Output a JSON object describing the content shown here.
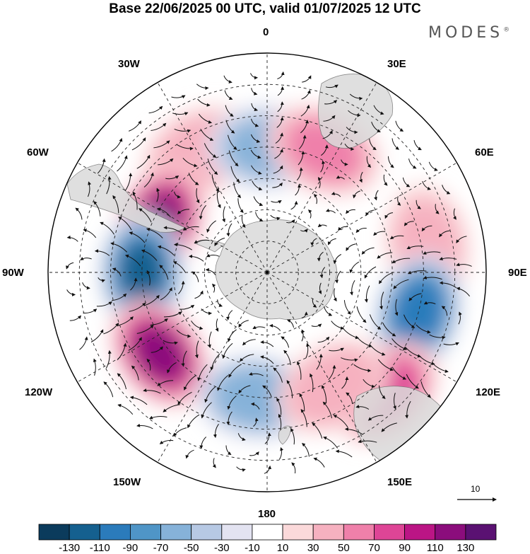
{
  "title": "Base 22/06/2025 00 UTC, valid 01/07/2025 12 UTC",
  "brand": {
    "text": "MODES",
    "mark": "®"
  },
  "longitude_labels": [
    {
      "key": "lon-0",
      "text": "0"
    },
    {
      "key": "lon-30e",
      "text": "30E"
    },
    {
      "key": "lon-60e",
      "text": "60E"
    },
    {
      "key": "lon-90e",
      "text": "90E"
    },
    {
      "key": "lon-120e",
      "text": "120E"
    },
    {
      "key": "lon-150e",
      "text": "150E"
    },
    {
      "key": "lon-180",
      "text": "180"
    },
    {
      "key": "lon-150w",
      "text": "150W"
    },
    {
      "key": "lon-120w",
      "text": "120W"
    },
    {
      "key": "lon-90w",
      "text": "90W"
    },
    {
      "key": "lon-60w",
      "text": "60W"
    },
    {
      "key": "lon-30w",
      "text": "30W"
    }
  ],
  "reference_vector": {
    "label": "10"
  },
  "colorbar": {
    "ticks": [
      "-130",
      "-110",
      "-90",
      "-70",
      "-50",
      "-30",
      "-10",
      "10",
      "30",
      "50",
      "70",
      "90",
      "110",
      "130"
    ],
    "colors": [
      "#0b3b5c",
      "#15608f",
      "#2b7bbb",
      "#4f95c7",
      "#86b2d9",
      "#b7c9e4",
      "#e3e3f1",
      "#ffffff",
      "#fbd9da",
      "#f6b1c0",
      "#ef80aa",
      "#de4596",
      "#bb1585",
      "#8b0d7c",
      "#5a1172"
    ]
  },
  "anomalies": [
    {
      "lon": 330,
      "lat": -46,
      "value": 55
    },
    {
      "lon": 295,
      "lat": -52,
      "value": 125
    },
    {
      "lon": 270,
      "lat": -50,
      "value": -120
    },
    {
      "lon": 233,
      "lat": -47,
      "value": 120
    },
    {
      "lon": 185,
      "lat": -50,
      "value": -75
    },
    {
      "lon": 0,
      "lat": -50,
      "value": -65
    },
    {
      "lon": 25,
      "lat": -47,
      "value": 65
    },
    {
      "lon": 80,
      "lat": -38,
      "value": 45
    },
    {
      "lon": 105,
      "lat": -40,
      "value": -115
    },
    {
      "lon": 135,
      "lat": -36,
      "value": 85
    },
    {
      "lon": 150,
      "lat": -48,
      "value": 55
    }
  ]
}
